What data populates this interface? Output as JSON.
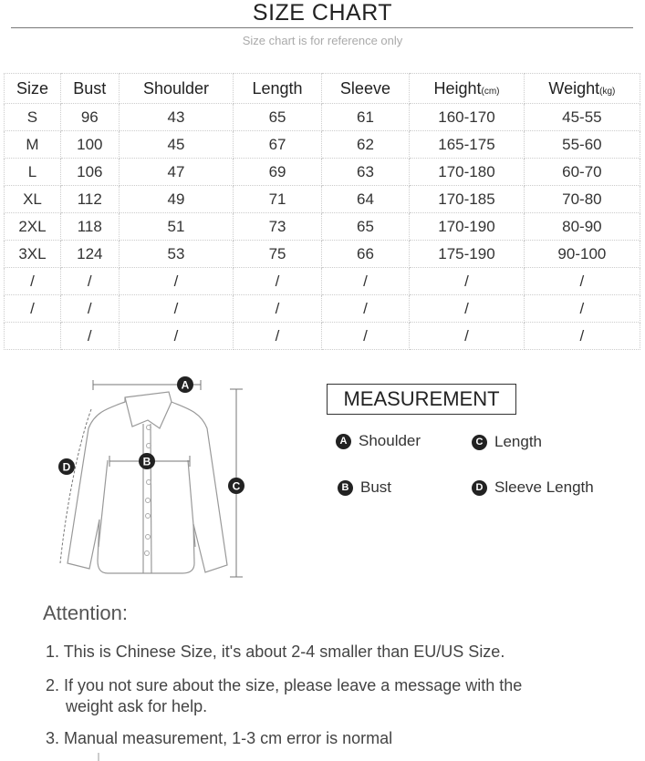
{
  "header": {
    "title": "SIZE CHART",
    "subtitle": "Size chart is for reference only"
  },
  "table": {
    "columns": [
      {
        "label": "Size",
        "unit": ""
      },
      {
        "label": "Bust",
        "unit": ""
      },
      {
        "label": "Shoulder",
        "unit": ""
      },
      {
        "label": "Length",
        "unit": ""
      },
      {
        "label": "Sleeve",
        "unit": ""
      },
      {
        "label": "Height",
        "unit": "(cm)"
      },
      {
        "label": "Weight",
        "unit": "(kg)"
      }
    ],
    "rows": [
      [
        "S",
        "96",
        "43",
        "65",
        "61",
        "160-170",
        "45-55"
      ],
      [
        "M",
        "100",
        "45",
        "67",
        "62",
        "165-175",
        "55-60"
      ],
      [
        "L",
        "106",
        "47",
        "69",
        "63",
        "170-180",
        "60-70"
      ],
      [
        "XL",
        "112",
        "49",
        "71",
        "64",
        "170-185",
        "70-80"
      ],
      [
        "2XL",
        "118",
        "51",
        "73",
        "65",
        "170-190",
        "80-90"
      ],
      [
        "3XL",
        "124",
        "53",
        "75",
        "66",
        "175-190",
        "90-100"
      ],
      [
        "/",
        "/",
        "/",
        "/",
        "/",
        "/",
        "/"
      ],
      [
        "/",
        "/",
        "/",
        "/",
        "/",
        "/",
        "/"
      ],
      [
        "",
        "/",
        "/",
        "/",
        "/",
        "/",
        "/"
      ]
    ]
  },
  "measurement": {
    "title": "MEASUREMENT",
    "items": [
      {
        "key": "A",
        "label": "Shoulder"
      },
      {
        "key": "B",
        "label": "Bust"
      },
      {
        "key": "C",
        "label": "Length"
      },
      {
        "key": "D",
        "label": "Sleeve Length"
      }
    ]
  },
  "attention": {
    "title": "Attention:",
    "items": [
      {
        "line1": "1. This is Chinese Size, it's about 2-4 smaller than EU/US Size.",
        "line2": ""
      },
      {
        "line1": "2. If you not sure about the size, please leave a message with the",
        "line2": "weight ask for help."
      },
      {
        "line1": "3. Manual measurement, 1-3 cm error is normal",
        "line2": ""
      }
    ]
  }
}
